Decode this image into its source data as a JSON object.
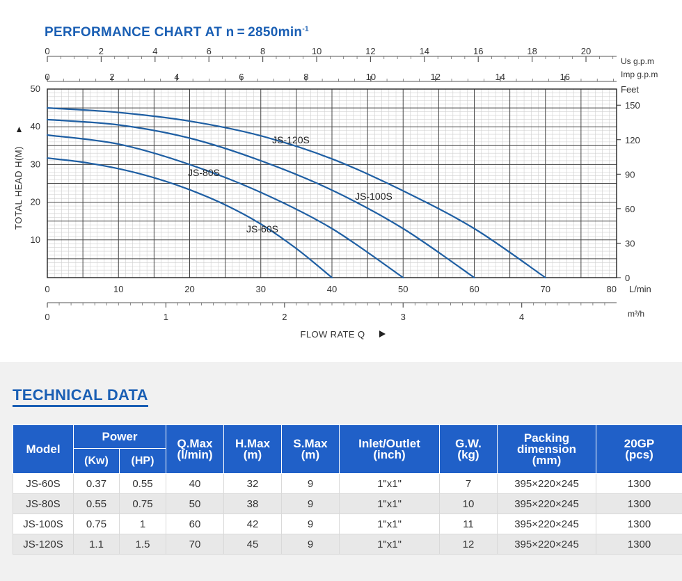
{
  "chart_title": {
    "main": "PERFORMANCE CHART AT n = 2850min",
    "sup": "-1"
  },
  "chart_data": {
    "type": "line",
    "title": "PERFORMANCE CHART AT n = 2850min-1",
    "xlabel": "FLOW RATE Q",
    "ylabel": "TOTAL HEAD H(M)",
    "xlim": [
      0,
      80
    ],
    "ylim": [
      0,
      50
    ],
    "grid": true,
    "axes": {
      "bottom_lmin": {
        "ticks": [
          0,
          10,
          20,
          30,
          40,
          50,
          60,
          70,
          80
        ],
        "unit": "L/min"
      },
      "bottom_m3h": {
        "ticks": [
          0,
          1,
          2,
          3,
          4
        ],
        "unit": "m³/h"
      },
      "top_usgpm": {
        "ticks": [
          0,
          2,
          4,
          6,
          8,
          10,
          12,
          14,
          16,
          18,
          20
        ],
        "unit": "Us g.p.m"
      },
      "top_impgpm": {
        "ticks": [
          0,
          2,
          4,
          6,
          8,
          10,
          12,
          14,
          16
        ],
        "unit": "Imp g.p.m"
      },
      "left_m": {
        "ticks": [
          10,
          20,
          30,
          40,
          50
        ]
      },
      "right_feet": {
        "ticks": [
          0,
          30,
          60,
          90,
          120,
          150
        ],
        "unit": "Feet"
      }
    },
    "series": [
      {
        "name": "JS-60S",
        "x": [
          0,
          5,
          10,
          15,
          20,
          25,
          30,
          35,
          40
        ],
        "y": [
          31.7,
          30.6,
          28.9,
          26.5,
          23.3,
          19.3,
          14.2,
          7.7,
          0
        ]
      },
      {
        "name": "JS-80S",
        "x": [
          0,
          10,
          20,
          30,
          40,
          50
        ],
        "y": [
          37.8,
          35.4,
          30.0,
          22.6,
          13.0,
          0
        ]
      },
      {
        "name": "JS-100S",
        "x": [
          0,
          10,
          20,
          30,
          40,
          50,
          60
        ],
        "y": [
          41.9,
          40.5,
          37.0,
          31.0,
          23.2,
          13.0,
          0
        ]
      },
      {
        "name": "JS-120S",
        "x": [
          0,
          10,
          20,
          30,
          40,
          50,
          60,
          70
        ],
        "y": [
          45.0,
          43.8,
          41.5,
          37.6,
          31.5,
          23.0,
          13.0,
          0
        ]
      }
    ]
  },
  "tech": {
    "title": "TECHNICAL DATA",
    "headers": {
      "model": "Model",
      "power": "Power",
      "kw": "(Kw)",
      "hp": "(HP)",
      "qmax": [
        "Q.Max",
        "(l/min)"
      ],
      "hmax": [
        "H.Max",
        "(m)"
      ],
      "smax": [
        "S.Max",
        "(m)"
      ],
      "inlet": [
        "Inlet/Outlet",
        "(inch)"
      ],
      "gw": [
        "G.W.",
        "(kg)"
      ],
      "packing": [
        "Packing",
        "dimension",
        "(mm)"
      ],
      "gp": [
        "20GP",
        "(pcs)"
      ]
    },
    "rows": [
      {
        "model": "JS-60S",
        "kw": "0.37",
        "hp": "0.55",
        "qmax": "40",
        "hmax": "32",
        "smax": "9",
        "inlet": "1\"x1\"",
        "gw": "7",
        "packing": "395×220×245",
        "gp": "1300"
      },
      {
        "model": "JS-80S",
        "kw": "0.55",
        "hp": "0.75",
        "qmax": "50",
        "hmax": "38",
        "smax": "9",
        "inlet": "1\"x1\"",
        "gw": "10",
        "packing": "395×220×245",
        "gp": "1300"
      },
      {
        "model": "JS-100S",
        "kw": "0.75",
        "hp": "1",
        "qmax": "60",
        "hmax": "42",
        "smax": "9",
        "inlet": "1\"x1\"",
        "gw": "11",
        "packing": "395×220×245",
        "gp": "1300"
      },
      {
        "model": "JS-120S",
        "kw": "1.1",
        "hp": "1.5",
        "qmax": "70",
        "hmax": "45",
        "smax": "9",
        "inlet": "1\"x1\"",
        "gw": "12",
        "packing": "395×220×245",
        "gp": "1300"
      }
    ]
  }
}
